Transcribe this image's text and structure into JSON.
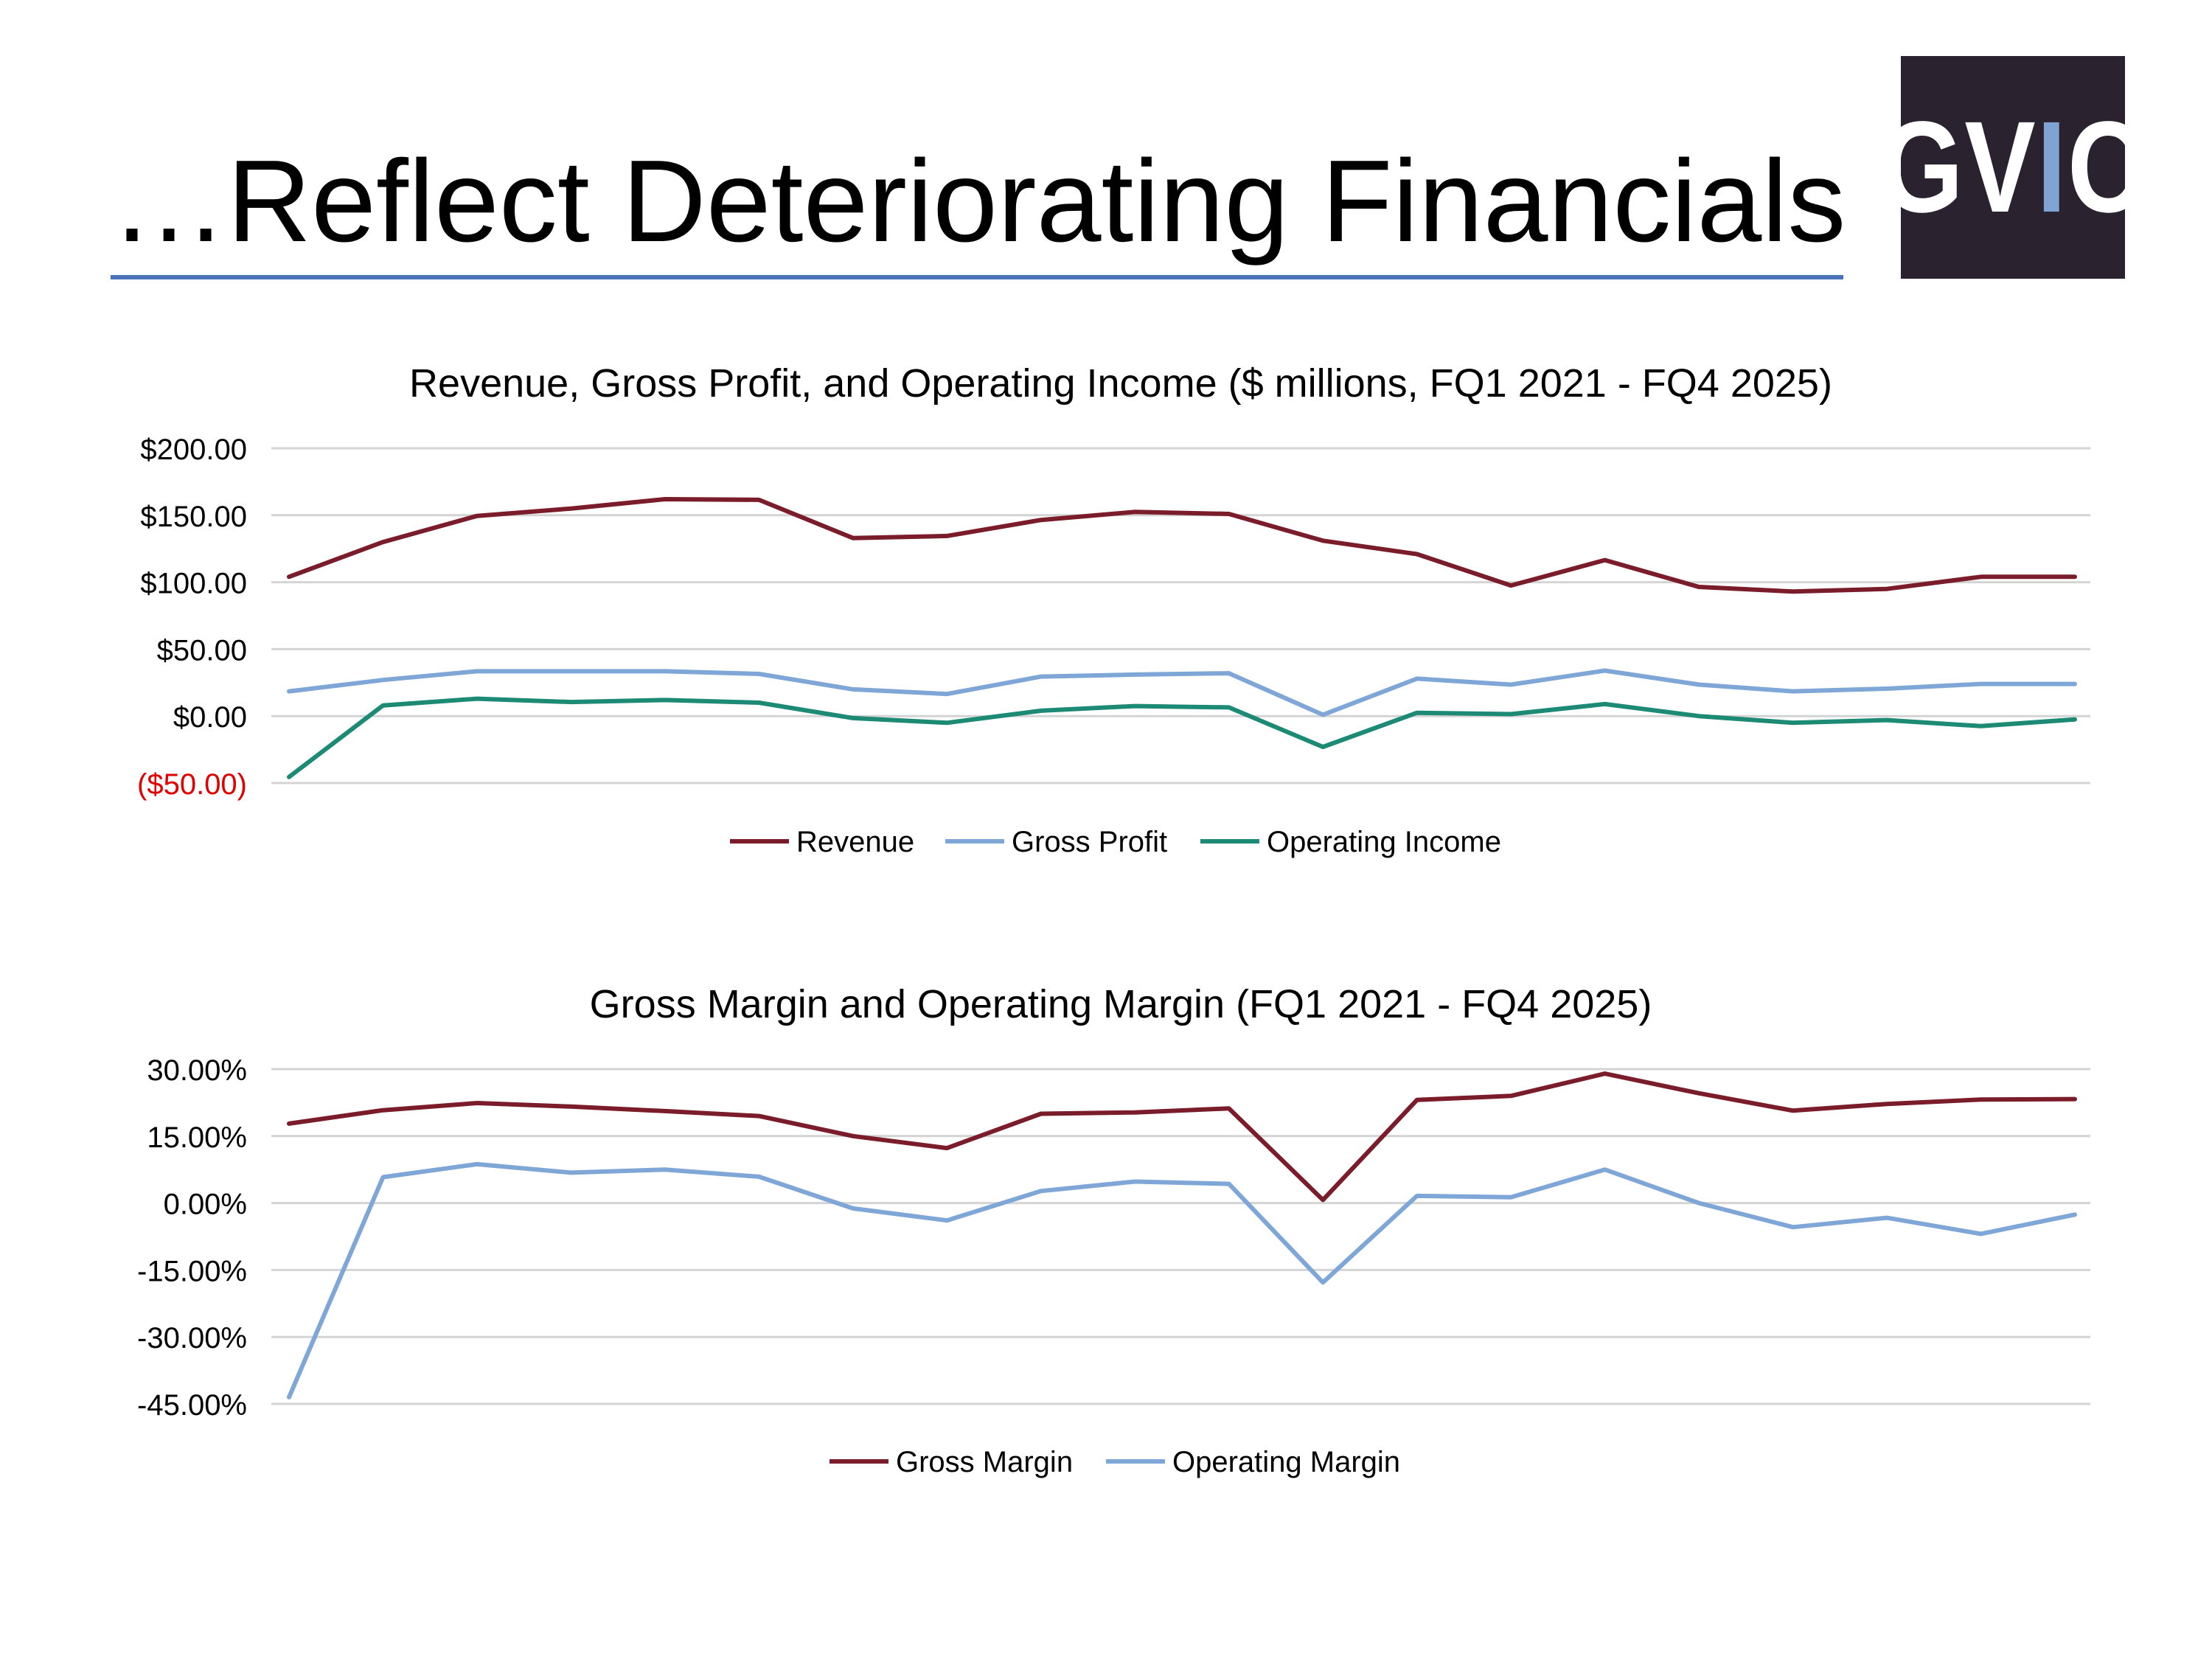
{
  "slide": {
    "title": "…Reflect Deteriorating Financials",
    "logo": {
      "text_left": "GV",
      "text_accent": "I",
      "text_right": "C",
      "accent_color": "#7fa3d3",
      "background": "#2b2230"
    }
  },
  "chart_data": [
    {
      "type": "line",
      "title": "Revenue, Gross Profit, and Operating Income ($ millions, FQ1 2021 - FQ4 2025)",
      "xlabel": "",
      "ylabel": "",
      "ylim": [
        -50,
        200
      ],
      "yticks": [
        200,
        150,
        100,
        50,
        0,
        -50
      ],
      "ytick_labels": [
        "$200.00",
        "$150.00",
        "$100.00",
        "$50.00",
        "$0.00",
        "($50.00)"
      ],
      "ytick_colors": [
        "#000000",
        "#000000",
        "#000000",
        "#000000",
        "#000000",
        "#e00000"
      ],
      "grid": true,
      "legend_position": "bottom",
      "categories_count": 20,
      "series": [
        {
          "name": "Revenue",
          "color": "#7b1c2b",
          "values": [
            104,
            130,
            149.5,
            155,
            162,
            161.5,
            133,
            134.5,
            146.5,
            152.5,
            151,
            131,
            121,
            97.5,
            116.5,
            96.5,
            93,
            95,
            104,
            104
          ]
        },
        {
          "name": "Gross Profit",
          "color": "#7ea6d6",
          "values": [
            18.5,
            27,
            33.5,
            33.5,
            33.5,
            31.5,
            20,
            16.5,
            29.5,
            31,
            32,
            1,
            28,
            23.5,
            34,
            23.5,
            18.5,
            20.5,
            24,
            24
          ]
        },
        {
          "name": "Operating Income",
          "color": "#1c8a74",
          "values": [
            -45.5,
            8,
            13,
            10.5,
            12,
            10,
            -1.5,
            -5,
            4,
            7.5,
            6.5,
            -23,
            2.5,
            1.5,
            9,
            0,
            -5,
            -3,
            -7.5,
            -2.5
          ]
        }
      ]
    },
    {
      "type": "line",
      "title": "Gross Margin and Operating Margin (FQ1 2021 - FQ4 2025)",
      "xlabel": "",
      "ylabel": "",
      "ylim": [
        -45,
        30
      ],
      "yticks": [
        30,
        15,
        0,
        -15,
        -30,
        -45
      ],
      "ytick_labels": [
        "30.00%",
        "15.00%",
        "0.00%",
        "-15.00%",
        "-30.00%",
        "-45.00%"
      ],
      "ytick_colors": [
        "#000000",
        "#000000",
        "#000000",
        "#000000",
        "#000000",
        "#000000"
      ],
      "grid": true,
      "legend_position": "bottom",
      "categories_count": 20,
      "series": [
        {
          "name": "Gross Margin",
          "color": "#7b1c2b",
          "values": [
            17.8,
            20.8,
            22.4,
            21.6,
            20.6,
            19.5,
            15,
            12.3,
            20,
            20.3,
            21.2,
            0.7,
            23.1,
            24,
            29,
            24.6,
            20.7,
            22.2,
            23.2,
            23.3
          ]
        },
        {
          "name": "Operating Margin",
          "color": "#7ea6d6",
          "values": [
            -43.5,
            5.8,
            8.7,
            6.8,
            7.5,
            5.9,
            -1.2,
            -3.9,
            2.7,
            4.8,
            4.3,
            -17.8,
            1.6,
            1.3,
            7.5,
            0,
            -5.4,
            -3.3,
            -6.9,
            -2.6
          ]
        }
      ]
    }
  ]
}
